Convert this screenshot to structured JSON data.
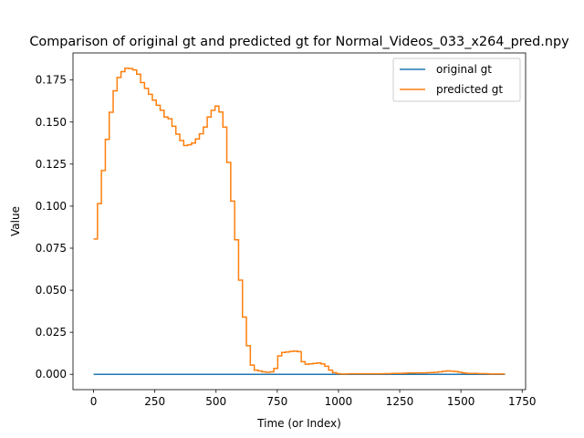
{
  "chart_data": {
    "type": "line",
    "title": "Comparison of original gt and predicted gt for Normal_Videos_033_x264_pred.npy",
    "xlabel": "Time (or Index)",
    "ylabel": "Value",
    "xlim": [
      -84,
      1764
    ],
    "ylim": [
      -0.0091,
      0.1911
    ],
    "xticks": [
      0,
      250,
      500,
      750,
      1000,
      1250,
      1500,
      1750
    ],
    "yticks": [
      0.0,
      0.025,
      0.05,
      0.075,
      0.1,
      0.125,
      0.15,
      0.175
    ],
    "ytick_labels": [
      "0.000",
      "0.025",
      "0.050",
      "0.075",
      "0.100",
      "0.125",
      "0.150",
      "0.175"
    ],
    "legend_position": "top-right",
    "grid": false,
    "series": [
      {
        "name": "original gt",
        "color": "#1f77b4",
        "step": true,
        "x": [
          0,
          1680
        ],
        "y": [
          0.0,
          0.0
        ]
      },
      {
        "name": "predicted gt",
        "color": "#ff7f0e",
        "step": true,
        "x": [
          0,
          16,
          32,
          48,
          64,
          80,
          96,
          112,
          128,
          144,
          160,
          176,
          192,
          208,
          224,
          240,
          256,
          272,
          288,
          304,
          320,
          336,
          352,
          368,
          384,
          400,
          416,
          432,
          448,
          464,
          480,
          496,
          512,
          528,
          544,
          560,
          576,
          592,
          608,
          624,
          640,
          656,
          672,
          688,
          704,
          720,
          736,
          752,
          768,
          784,
          800,
          816,
          832,
          848,
          864,
          880,
          896,
          912,
          928,
          944,
          960,
          976,
          992,
          1008,
          1024,
          1040,
          1056,
          1072,
          1088,
          1104,
          1120,
          1136,
          1152,
          1168,
          1184,
          1200,
          1216,
          1232,
          1248,
          1264,
          1280,
          1296,
          1312,
          1328,
          1344,
          1360,
          1376,
          1392,
          1408,
          1424,
          1440,
          1456,
          1472,
          1488,
          1504,
          1520,
          1536,
          1552,
          1568,
          1584,
          1600,
          1616,
          1632,
          1648,
          1664,
          1680
        ],
        "y": [
          0.0805,
          0.1015,
          0.1212,
          0.1397,
          0.1558,
          0.1686,
          0.1765,
          0.18,
          0.182,
          0.1818,
          0.181,
          0.1785,
          0.1735,
          0.17,
          0.1665,
          0.163,
          0.16,
          0.157,
          0.153,
          0.152,
          0.1475,
          0.1428,
          0.139,
          0.136,
          0.1365,
          0.1375,
          0.14,
          0.143,
          0.147,
          0.153,
          0.157,
          0.1595,
          0.156,
          0.147,
          0.126,
          0.103,
          0.08,
          0.056,
          0.034,
          0.017,
          0.0055,
          0.0025,
          0.002,
          0.0015,
          0.0012,
          0.0015,
          0.0035,
          0.011,
          0.013,
          0.0133,
          0.0136,
          0.0138,
          0.0135,
          0.0075,
          0.006,
          0.0062,
          0.0065,
          0.0068,
          0.0062,
          0.0048,
          0.0025,
          0.001,
          0.0004,
          0.0002,
          0.0002,
          0.0003,
          0.0003,
          0.0003,
          0.0003,
          0.0003,
          0.0003,
          0.0003,
          0.0003,
          0.0003,
          0.0004,
          0.0004,
          0.0005,
          0.0005,
          0.0006,
          0.0007,
          0.0008,
          0.0008,
          0.0009,
          0.0009,
          0.0009,
          0.001,
          0.0011,
          0.0012,
          0.0015,
          0.0018,
          0.002,
          0.0019,
          0.0017,
          0.0013,
          0.0009,
          0.0006,
          0.0005,
          0.0005,
          0.0004,
          0.0004,
          0.0003,
          0.0002,
          0.0002,
          0.0002,
          0.0002,
          0.0002
        ]
      }
    ]
  }
}
